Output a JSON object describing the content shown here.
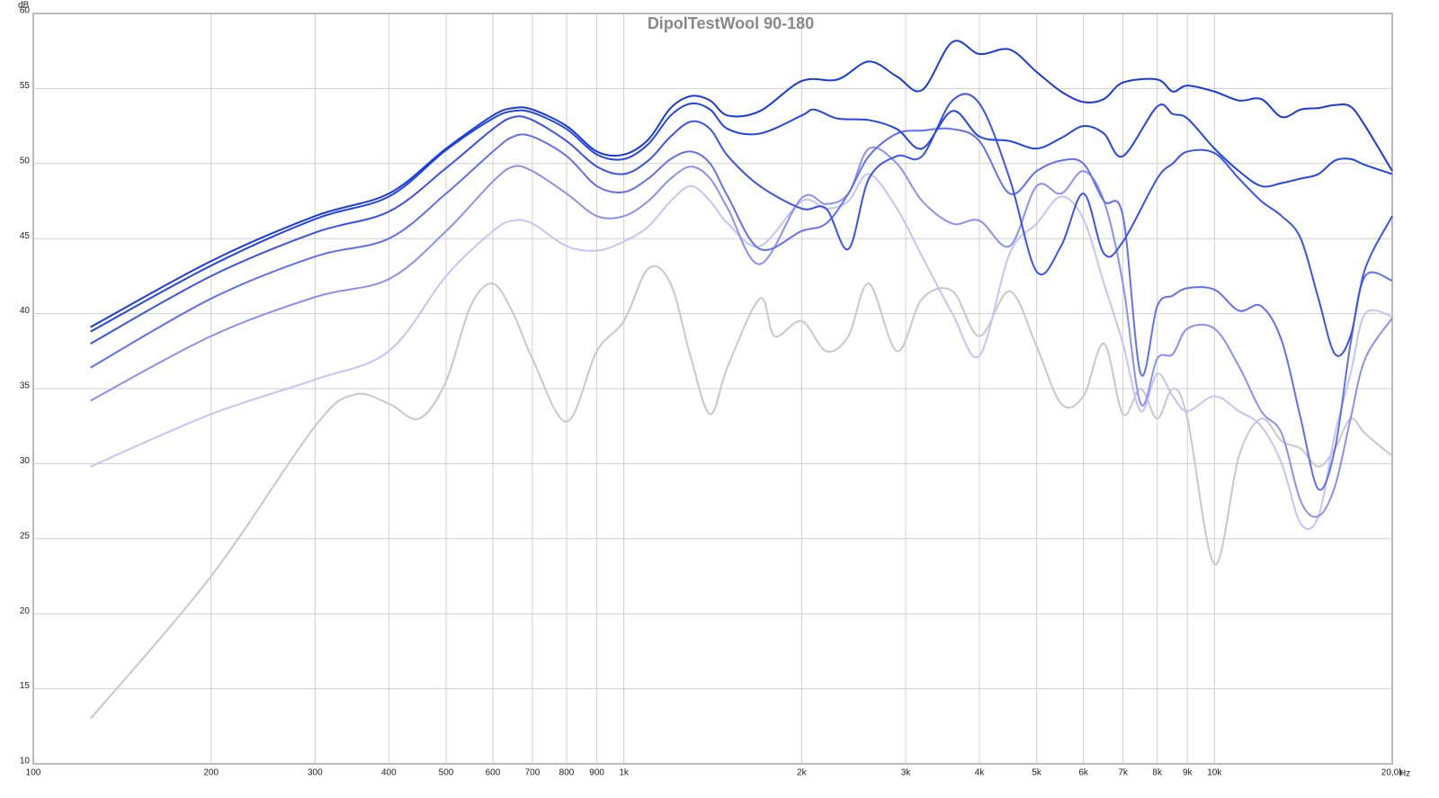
{
  "chart_data": {
    "type": "line",
    "title": "DipolTestWool 90-180",
    "ylabel": "dB",
    "xlabel": "Hz",
    "log_x": true,
    "grid": true,
    "xlim": [
      100,
      20000
    ],
    "ylim": [
      10,
      60
    ],
    "xticks": [
      100,
      200,
      300,
      400,
      500,
      600,
      700,
      800,
      900,
      {
        "value": 1000,
        "label": "1k"
      },
      {
        "value": 2000,
        "label": "2k"
      },
      {
        "value": 3000,
        "label": "3k"
      },
      {
        "value": 4000,
        "label": "4k"
      },
      {
        "value": 5000,
        "label": "5k"
      },
      {
        "value": 6000,
        "label": "6k"
      },
      {
        "value": 7000,
        "label": "7k"
      },
      {
        "value": 8000,
        "label": "8k"
      },
      {
        "value": 9000,
        "label": "9k"
      },
      {
        "value": 10000,
        "label": "10k"
      },
      {
        "value": 20000,
        "label": "20,0k"
      }
    ],
    "yticks": [
      10,
      15,
      20,
      25,
      30,
      35,
      40,
      45,
      50,
      55,
      60
    ],
    "series": [
      {
        "color": "#1a3ae0",
        "x": [
          125,
          200,
          300,
          400,
          500,
          600,
          650,
          700,
          800,
          900,
          1000,
          1100,
          1200,
          1300,
          1400,
          1500,
          1700,
          2000,
          2300,
          2600,
          2900,
          3200,
          3600,
          4000,
          4500,
          5000,
          5500,
          6000,
          6500,
          7000,
          8000,
          8500,
          9000,
          10000,
          11000,
          12000,
          13000,
          14000,
          15000,
          16000,
          17000,
          18000,
          20000
        ],
        "values": [
          39.1,
          43.5,
          46.5,
          48,
          51,
          53.2,
          53.7,
          53.6,
          52.5,
          50.8,
          50.6,
          51.6,
          53.7,
          54.5,
          54.2,
          53.2,
          53.5,
          55.5,
          55.6,
          56.8,
          55.8,
          54.9,
          58.1,
          57.3,
          57.6,
          56.1,
          54.8,
          54.1,
          54.3,
          55.4,
          55.6,
          54.8,
          55.2,
          54.8,
          54.2,
          54.3,
          53.1,
          53.6,
          53.7,
          53.9,
          53.8,
          52.5,
          49.5
        ]
      },
      {
        "color": "#2244e8",
        "x": [
          125,
          200,
          300,
          400,
          500,
          600,
          650,
          700,
          800,
          900,
          1000,
          1100,
          1200,
          1300,
          1400,
          1500,
          1700,
          2000,
          2100,
          2300,
          2600,
          2900,
          3200,
          3600,
          4000,
          4500,
          5000,
          5500,
          6000,
          6500,
          7000,
          8000,
          8500,
          9000,
          10000,
          11000,
          12000,
          13000,
          14000,
          15000,
          16000,
          17000,
          18000,
          20000
        ],
        "values": [
          38.8,
          43.2,
          46.3,
          47.8,
          50.9,
          53,
          53.5,
          53.4,
          52.3,
          50.6,
          50.3,
          51.3,
          53.2,
          54,
          53.6,
          52.3,
          52,
          53.2,
          53.6,
          53,
          52.9,
          52.3,
          51,
          53.5,
          51.8,
          51.5,
          51,
          51.7,
          52.5,
          52,
          50.5,
          53.8,
          53.3,
          53,
          51,
          49.5,
          48.5,
          48.7,
          49,
          49.3,
          50.2,
          50.3,
          49.9,
          49.3
        ]
      },
      {
        "color": "#3a52ea",
        "x": [
          125,
          200,
          300,
          400,
          500,
          600,
          650,
          700,
          800,
          900,
          1000,
          1100,
          1200,
          1300,
          1400,
          1500,
          1700,
          2000,
          2200,
          2400,
          2600,
          2900,
          3200,
          3600,
          4000,
          4500,
          5000,
          5500,
          6000,
          6500,
          7000,
          8000,
          8500,
          9000,
          10000,
          11000,
          12000,
          13000,
          14000,
          15000,
          16000,
          17000,
          18000,
          20000
        ],
        "values": [
          38,
          42.5,
          45.4,
          46.8,
          49.7,
          52.3,
          53.1,
          52.9,
          51.5,
          49.8,
          49.3,
          50.2,
          51.8,
          52.8,
          52.3,
          50.5,
          48.5,
          47,
          47,
          44.3,
          49,
          50.5,
          50.5,
          54.2,
          54,
          49,
          42.8,
          44.5,
          48,
          44,
          44.8,
          49,
          50,
          50.8,
          50.7,
          49,
          47.5,
          46.5,
          45,
          41,
          37.3,
          38.5,
          43,
          46.5
        ]
      },
      {
        "color": "#6070f0",
        "x": [
          125,
          200,
          300,
          400,
          500,
          600,
          650,
          700,
          800,
          900,
          1000,
          1100,
          1200,
          1300,
          1400,
          1500,
          1700,
          2000,
          2200,
          2400,
          2600,
          2900,
          3200,
          3600,
          4000,
          4500,
          5000,
          5500,
          6000,
          6500,
          7000,
          7500,
          8000,
          8500,
          9000,
          10000,
          11000,
          12000,
          13000,
          14000,
          15000,
          16000,
          17000,
          18000,
          20000
        ],
        "values": [
          36.4,
          41,
          43.8,
          45,
          48,
          50.8,
          51.8,
          51.8,
          50.5,
          48.5,
          48.1,
          49,
          50.3,
          50.8,
          50,
          47.8,
          44.3,
          45.5,
          46,
          48,
          50.5,
          52,
          52.2,
          52.3,
          51.5,
          48,
          49.5,
          50.2,
          50,
          47.5,
          46.5,
          36,
          40.5,
          41.2,
          41.7,
          41.6,
          40.2,
          40.5,
          38.2,
          33,
          28.3,
          31,
          38,
          42.5,
          42.2
        ]
      },
      {
        "color": "#8c8ff2",
        "x": [
          125,
          200,
          300,
          400,
          500,
          600,
          650,
          700,
          800,
          900,
          1000,
          1100,
          1200,
          1300,
          1400,
          1500,
          1700,
          2000,
          2200,
          2400,
          2600,
          2900,
          3200,
          3600,
          4000,
          4500,
          5000,
          5500,
          6000,
          6500,
          7000,
          7500,
          8000,
          8500,
          9000,
          10000,
          11000,
          12000,
          13000,
          14000,
          15000,
          16000,
          17000,
          18000,
          20000
        ],
        "values": [
          34.2,
          38.5,
          41.1,
          42.3,
          45.5,
          48.8,
          49.8,
          49.5,
          48,
          46.5,
          46.5,
          47.5,
          49,
          49.8,
          49,
          47,
          43.3,
          47.7,
          47.3,
          48,
          51,
          50,
          47.5,
          46,
          46.2,
          44.5,
          48.5,
          48,
          49.5,
          47.5,
          42,
          34,
          37,
          37.3,
          39,
          39,
          36.5,
          33.5,
          32,
          27.5,
          26.5,
          28.5,
          33,
          37,
          39.7
        ]
      },
      {
        "color": "#c4c4f6",
        "x": [
          125,
          200,
          300,
          400,
          500,
          600,
          650,
          700,
          800,
          900,
          1000,
          1100,
          1200,
          1300,
          1400,
          1500,
          1700,
          2000,
          2200,
          2400,
          2600,
          2900,
          3200,
          3600,
          4000,
          4500,
          5000,
          5500,
          6000,
          6500,
          7000,
          7500,
          8000,
          8500,
          9000,
          10000,
          11000,
          12000,
          13000,
          14000,
          15000,
          16000,
          17000,
          18000,
          20000
        ],
        "values": [
          29.8,
          33.3,
          35.6,
          37.5,
          42.5,
          45.5,
          46.2,
          46,
          44.5,
          44.2,
          44.8,
          45.8,
          47.5,
          48.5,
          47.5,
          46,
          44.5,
          47.5,
          47,
          47.5,
          49.3,
          47,
          43.8,
          40,
          37.2,
          44,
          46,
          47.8,
          46.3,
          42,
          38,
          33.5,
          36,
          34.5,
          33.5,
          34.5,
          33.5,
          32.5,
          30,
          26,
          26.5,
          32,
          36,
          40,
          39.8
        ]
      },
      {
        "color": "#c8c8c8",
        "x": [
          125,
          200,
          300,
          350,
          400,
          450,
          500,
          550,
          600,
          650,
          700,
          800,
          900,
          1000,
          1100,
          1200,
          1300,
          1400,
          1500,
          1700,
          1800,
          2000,
          2200,
          2400,
          2600,
          2900,
          3200,
          3600,
          4000,
          4500,
          5000,
          5500,
          6000,
          6500,
          7000,
          7500,
          8000,
          8500,
          9000,
          10000,
          11000,
          12000,
          13000,
          14000,
          15000,
          16000,
          17000,
          18000,
          20000
        ],
        "values": [
          13,
          22.5,
          32.5,
          34.6,
          34,
          33,
          35.5,
          40.5,
          42,
          40,
          37,
          32.8,
          37.5,
          39.5,
          43,
          42,
          37,
          33.3,
          36.5,
          41,
          38.5,
          39.5,
          37.5,
          38.5,
          42,
          37.5,
          41,
          41.5,
          38.5,
          41.5,
          37.8,
          34,
          34.5,
          38,
          33.3,
          35,
          33,
          35,
          33,
          23.3,
          30.5,
          33,
          31.5,
          31,
          29.8,
          31,
          33,
          32,
          30.5
        ]
      }
    ]
  }
}
